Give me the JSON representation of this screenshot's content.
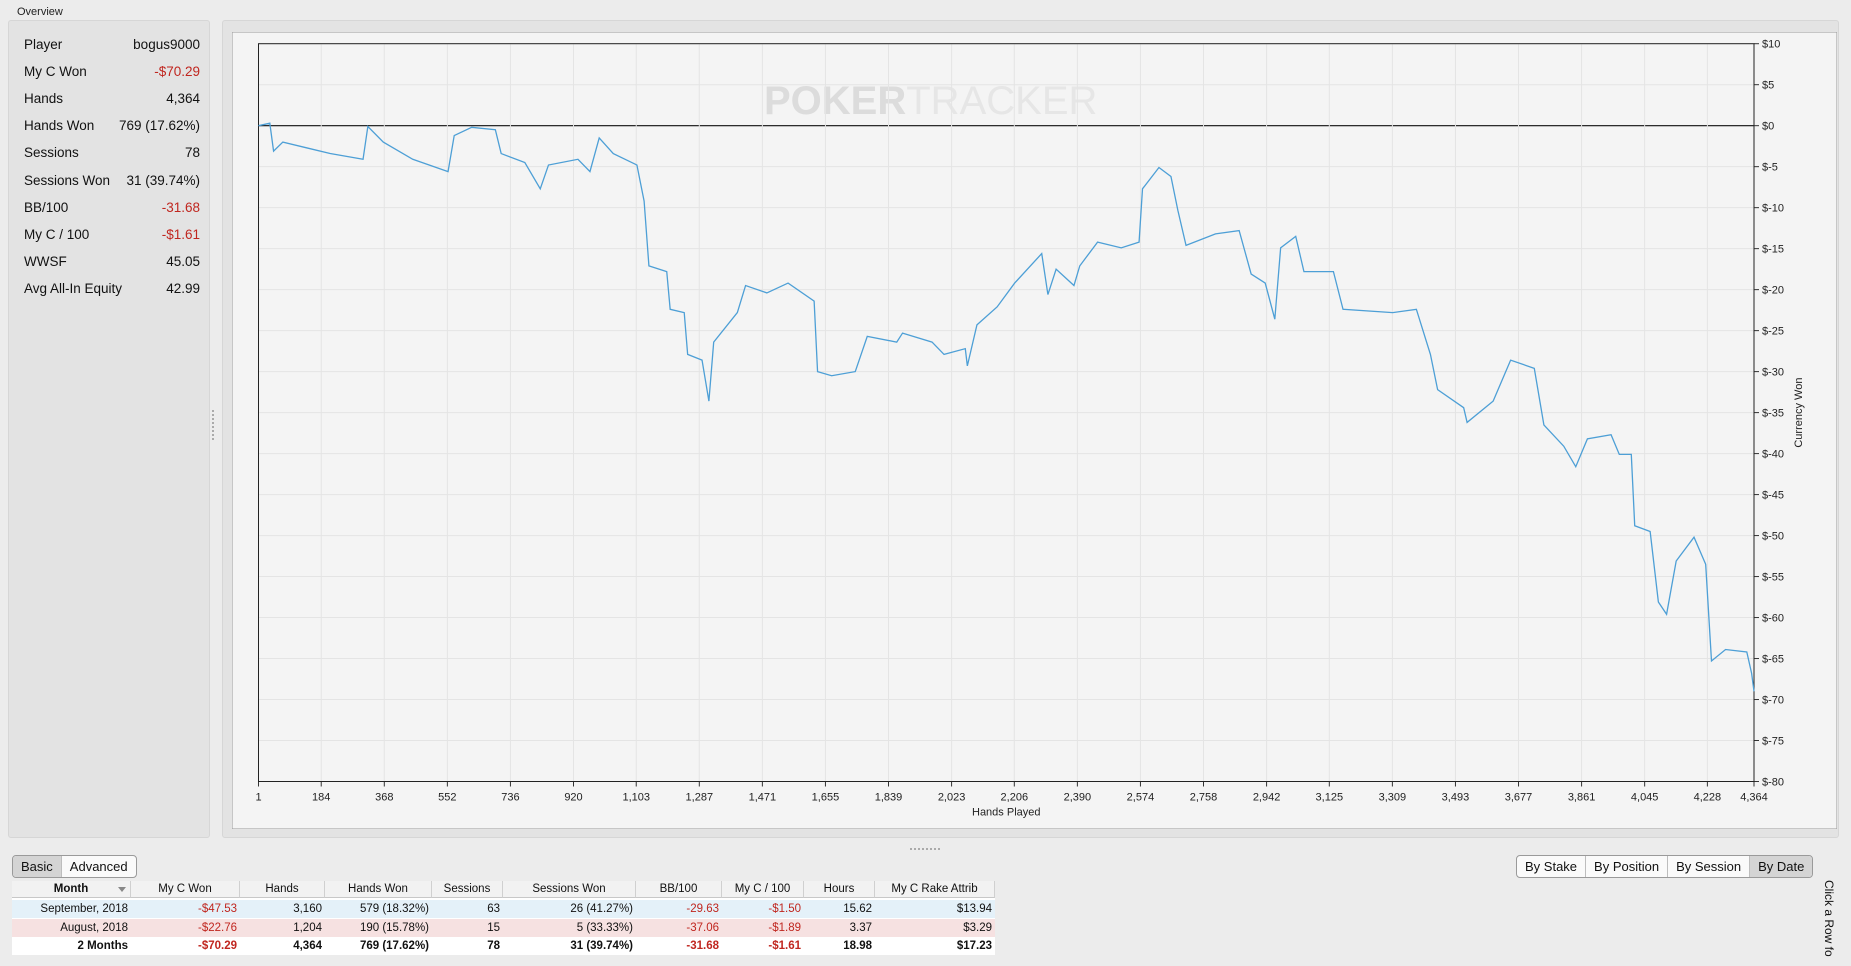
{
  "panel_title": "Overview",
  "stats": [
    {
      "label": "Player",
      "value": "bogus9000"
    },
    {
      "label": "My C Won",
      "value": "-$70.29"
    },
    {
      "label": "Hands",
      "value": "4,364"
    },
    {
      "label": "Hands Won",
      "value": "769 (17.62%)"
    },
    {
      "label": "Sessions",
      "value": "78"
    },
    {
      "label": "Sessions Won",
      "value": "31 (39.74%)"
    },
    {
      "label": "BB/100",
      "value": "-31.68"
    },
    {
      "label": "My C / 100",
      "value": "-$1.61"
    },
    {
      "label": "WWSF",
      "value": "45.05"
    },
    {
      "label": "Avg All-In Equity",
      "value": "42.99"
    }
  ],
  "watermark": {
    "left": "POKER",
    "right": "TRACKER"
  },
  "chart_data": {
    "type": "line",
    "xlabel": "Hands Played",
    "ylabel": "Currency Won",
    "grid": true,
    "color": "#4d9fd6",
    "x": [
      1,
      34,
      45,
      72,
      141,
      210,
      306,
      320,
      365,
      451,
      554,
      572,
      623,
      692,
      709,
      778,
      823,
      847,
      933,
      968,
      995,
      1036,
      1105,
      1126,
      1140,
      1192,
      1202,
      1243,
      1253,
      1295,
      1315,
      1329,
      1398,
      1422,
      1484,
      1546,
      1622,
      1632,
      1673,
      1742,
      1777,
      1863,
      1880,
      1966,
      2001,
      2063,
      2069,
      2097,
      2156,
      2207,
      2286,
      2304,
      2328,
      2380,
      2397,
      2449,
      2518,
      2570,
      2580,
      2628,
      2663,
      2683,
      2707,
      2793,
      2862,
      2897,
      2938,
      2966,
      2983,
      3027,
      3051,
      3137,
      3165,
      3310,
      3379,
      3420,
      3441,
      3517,
      3527,
      3603,
      3654,
      3723,
      3751,
      3809,
      3844,
      3878,
      3947,
      3971,
      4006,
      4016,
      4061,
      4085,
      4109,
      4137,
      4189,
      4223,
      4240,
      4281,
      4343,
      4357,
      4364
    ],
    "values": [
      0,
      0.3,
      -3.1,
      -2,
      -2.7,
      -3.4,
      -4.1,
      -0.1,
      -2,
      -4.1,
      -5.6,
      -1.2,
      -0.2,
      -0.5,
      -3.4,
      -4.5,
      -7.7,
      -4.8,
      -4.1,
      -5.6,
      -1.5,
      -3.4,
      -4.8,
      -9.2,
      -17.1,
      -17.8,
      -22.4,
      -22.8,
      -27.9,
      -28.6,
      -33.6,
      -26.4,
      -22.8,
      -19.5,
      -20.4,
      -19.2,
      -21.4,
      -30,
      -30.5,
      -30,
      -25.7,
      -26.4,
      -25.3,
      -26.4,
      -27.9,
      -27.2,
      -29.3,
      -24.3,
      -22.1,
      -19.2,
      -15.6,
      -20.6,
      -17.5,
      -19.5,
      -17.1,
      -14.2,
      -14.9,
      -14.2,
      -7.7,
      -5.1,
      -6.2,
      -10.3,
      -14.6,
      -13.2,
      -12.8,
      -18.1,
      -19.2,
      -23.6,
      -14.9,
      -13.5,
      -17.8,
      -17.8,
      -22.4,
      -22.8,
      -22.4,
      -27.9,
      -32.2,
      -34.4,
      -36.2,
      -33.6,
      -28.6,
      -29.6,
      -36.5,
      -39.1,
      -41.6,
      -38.2,
      -37.7,
      -40.1,
      -40.1,
      -48.8,
      -49.5,
      -58.1,
      -59.6,
      -53.1,
      -50.2,
      -53.5,
      -65.3,
      -63.9,
      -64.2,
      -66.8,
      -69
    ],
    "xlim": [
      1,
      4364
    ],
    "xticks": [
      1,
      184,
      368,
      552,
      736,
      920,
      {
        "value": 1103,
        "label": "1,103"
      },
      {
        "value": 1287,
        "label": "1,287"
      },
      {
        "value": 1471,
        "label": "1,471"
      },
      {
        "value": 1655,
        "label": "1,655"
      },
      {
        "value": 1839,
        "label": "1,839"
      },
      {
        "value": 2023,
        "label": "2,023"
      },
      {
        "value": 2206,
        "label": "2,206"
      },
      {
        "value": 2390,
        "label": "2,390"
      },
      {
        "value": 2574,
        "label": "2,574"
      },
      {
        "value": 2758,
        "label": "2,758"
      },
      {
        "value": 2942,
        "label": "2,942"
      },
      {
        "value": 3125,
        "label": "3,125"
      },
      {
        "value": 3309,
        "label": "3,309"
      },
      {
        "value": 3493,
        "label": "3,493"
      },
      {
        "value": 3677,
        "label": "3,677"
      },
      {
        "value": 3861,
        "label": "3,861"
      },
      {
        "value": 4045,
        "label": "4,045"
      },
      {
        "value": 4228,
        "label": "4,228"
      },
      {
        "value": 4364,
        "label": "4,364"
      }
    ],
    "ylim": [
      -80,
      10
    ],
    "yticks": [
      {
        "value": 10,
        "label": "$10"
      },
      {
        "value": 5,
        "label": "$5"
      },
      {
        "value": 0,
        "label": "$0"
      },
      {
        "value": -5,
        "label": "$-5"
      },
      {
        "value": -10,
        "label": "$-10"
      },
      {
        "value": -15,
        "label": "$-15"
      },
      {
        "value": -20,
        "label": "$-20"
      },
      {
        "value": -25,
        "label": "$-25"
      },
      {
        "value": -30,
        "label": "$-30"
      },
      {
        "value": -35,
        "label": "$-35"
      },
      {
        "value": -40,
        "label": "$-40"
      },
      {
        "value": -45,
        "label": "$-45"
      },
      {
        "value": -50,
        "label": "$-50"
      },
      {
        "value": -55,
        "label": "$-55"
      },
      {
        "value": -60,
        "label": "$-60"
      },
      {
        "value": -65,
        "label": "$-65"
      },
      {
        "value": -70,
        "label": "$-70"
      },
      {
        "value": -75,
        "label": "$-75"
      },
      {
        "value": -80,
        "label": "$-80"
      }
    ]
  },
  "view_buttons": [
    "Basic",
    "Advanced"
  ],
  "active_view": 0,
  "group_buttons": [
    "By Stake",
    "By Position",
    "By Session",
    "By Date"
  ],
  "active_group": 3,
  "table": {
    "headers": [
      "Month",
      "My C Won",
      "Hands",
      "Hands Won",
      "Sessions",
      "Sessions Won",
      "BB/100",
      "My C / 100",
      "Hours",
      "My C Rake Attrib"
    ],
    "rows": [
      [
        "September, 2018",
        "-$47.53",
        "3,160",
        "579 (18.32%)",
        "63",
        "26 (41.27%)",
        "-29.63",
        "-$1.50",
        "15.62",
        "$13.94"
      ],
      [
        "August, 2018",
        "-$22.76",
        "1,204",
        "190 (15.78%)",
        "15",
        "5 (33.33%)",
        "-37.06",
        "-$1.89",
        "3.37",
        "$3.29"
      ],
      [
        "2 Months",
        "-$70.29",
        "4,364",
        "769 (17.62%)",
        "78",
        "31 (39.74%)",
        "-31.68",
        "-$1.61",
        "18.98",
        "$17.23"
      ]
    ]
  },
  "side_hint": "Click a Row fo"
}
